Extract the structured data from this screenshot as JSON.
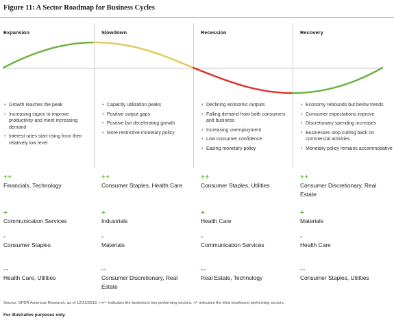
{
  "title": "Figure 11: A Sector Roadmap for Business Cycles",
  "colors": {
    "expansion_curve": "#6db33f",
    "slowdown_curve": "#e2cb5b",
    "recession_curve": "#d9342b",
    "recovery_curve": "#6db33f",
    "positive_sign": "#6db33f",
    "negative_sign": "#d9342b"
  },
  "phases": [
    {
      "name": "Expansion",
      "bullets": [
        "Growth reaches the peak",
        "Increasing capex to improve productivity and meet increasing demand",
        "Interest rates start rising from their relatively low level"
      ],
      "best_sign": "++",
      "best": "Financials, Technology",
      "third_best_sign": "+",
      "third_best": "Communication Services",
      "third_worst_sign": "-",
      "third_worst": "Consumer Staples",
      "worst_sign": "--",
      "worst": "Health Care, Utilities"
    },
    {
      "name": "Slowdown",
      "bullets": [
        "Capacity utilization peaks",
        "Positive output gaps",
        "Positive but decelerating growth",
        "More restrictive monetary policy"
      ],
      "best_sign": "++",
      "best": "Consumer Staples, Health Care",
      "third_best_sign": "+",
      "third_best": "Industrials",
      "third_worst_sign": "-",
      "third_worst": "Materials",
      "worst_sign": "--",
      "worst": "Consumer Discretionary, Real Estate"
    },
    {
      "name": "Recession",
      "bullets": [
        "Declining economic outputs",
        "Falling demand from both consumers and business",
        "Increasing unemployment",
        "Low consumer confidence",
        "Easing monetary policy"
      ],
      "best_sign": "++",
      "best": "Consumer Staples, Utilities",
      "third_best_sign": "+",
      "third_best": "Health Care",
      "third_worst_sign": "-",
      "third_worst": "Communication Services",
      "worst_sign": "--",
      "worst": "Real Estate, Technology"
    },
    {
      "name": "Recovery",
      "bullets": [
        "Economy rebounds but below trends",
        "Consumer expectations improve",
        "Discretionary spending increases",
        "Businesses stop cutting back on commercial activities",
        "Monetary policy remains accommodative"
      ],
      "best_sign": "++",
      "best": "Consumer Discretionary, Real Estate",
      "third_best_sign": "+",
      "third_best": "Materials",
      "third_worst_sign": "-",
      "third_worst": "Health Care",
      "worst_sign": "--",
      "worst": "Consumer Staples, Utilities"
    }
  ],
  "footnote": "Source: SPDR Americas Research, as of 12/31/2018. ++/-- indicates the best/worst two performing sectors. +/- indicates the third best/worst performing sectors.",
  "illustrative_note": "For illustrative purposes only."
}
